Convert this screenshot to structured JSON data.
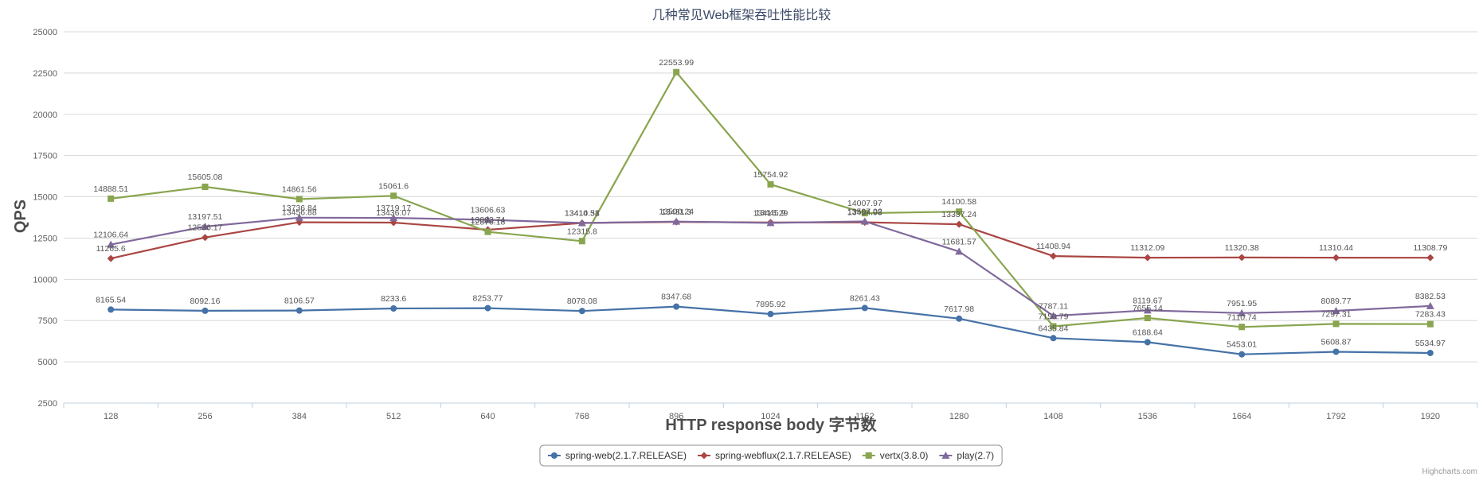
{
  "chart_data": {
    "type": "line",
    "title": "几种常见Web框架吞吐性能比较",
    "xlabel": "HTTP response body 字节数",
    "ylabel": "QPS",
    "categories": [
      "128",
      "256",
      "384",
      "512",
      "640",
      "768",
      "896",
      "1024",
      "1152",
      "1280",
      "1408",
      "1536",
      "1664",
      "1792",
      "1920"
    ],
    "ylim": [
      2500,
      25000
    ],
    "yticks": [
      2500,
      5000,
      7500,
      10000,
      12500,
      15000,
      17500,
      20000,
      22500,
      25000
    ],
    "grid": true,
    "legend_position": "bottom-center",
    "series": [
      {
        "name": "spring-web(2.1.7.RELEASE)",
        "color": "#4572A7",
        "marker": "circle",
        "values": [
          8165.54,
          8092.16,
          8106.57,
          8233.6,
          8253.77,
          8078.08,
          8347.68,
          7895.92,
          8261.43,
          7617.98,
          6435.84,
          6188.64,
          5453.01,
          5608.87,
          5534.97
        ]
      },
      {
        "name": "spring-webflux(2.1.7.RELEASE)",
        "color": "#AA4643",
        "marker": "diamond",
        "values": [
          11265.6,
          12536.17,
          13456.88,
          13436.07,
          13003.74,
          13414.51,
          13481.3,
          13445.9,
          13454.98,
          13337.24,
          11408.94,
          11312.09,
          11320.38,
          11310.44,
          11308.79
        ]
      },
      {
        "name": "vertx(3.8.0)",
        "color": "#89A54E",
        "marker": "square",
        "values": [
          14888.51,
          15605.08,
          14861.56,
          15061.6,
          12876.18,
          12315.8,
          22553.99,
          15754.92,
          14007.97,
          14100.58,
          7150.79,
          7655.14,
          7110.74,
          7297.31,
          7283.43
        ]
      },
      {
        "name": "play(2.7)",
        "color": "#80699B",
        "marker": "triangle",
        "values": [
          12106.64,
          13197.51,
          13736.84,
          13719.17,
          13606.63,
          13410.38,
          13500.24,
          13416.29,
          13507.02,
          11681.57,
          7787.11,
          8119.67,
          7951.95,
          8089.77,
          8382.53
        ]
      }
    ],
    "credits": "Highcharts.com"
  }
}
